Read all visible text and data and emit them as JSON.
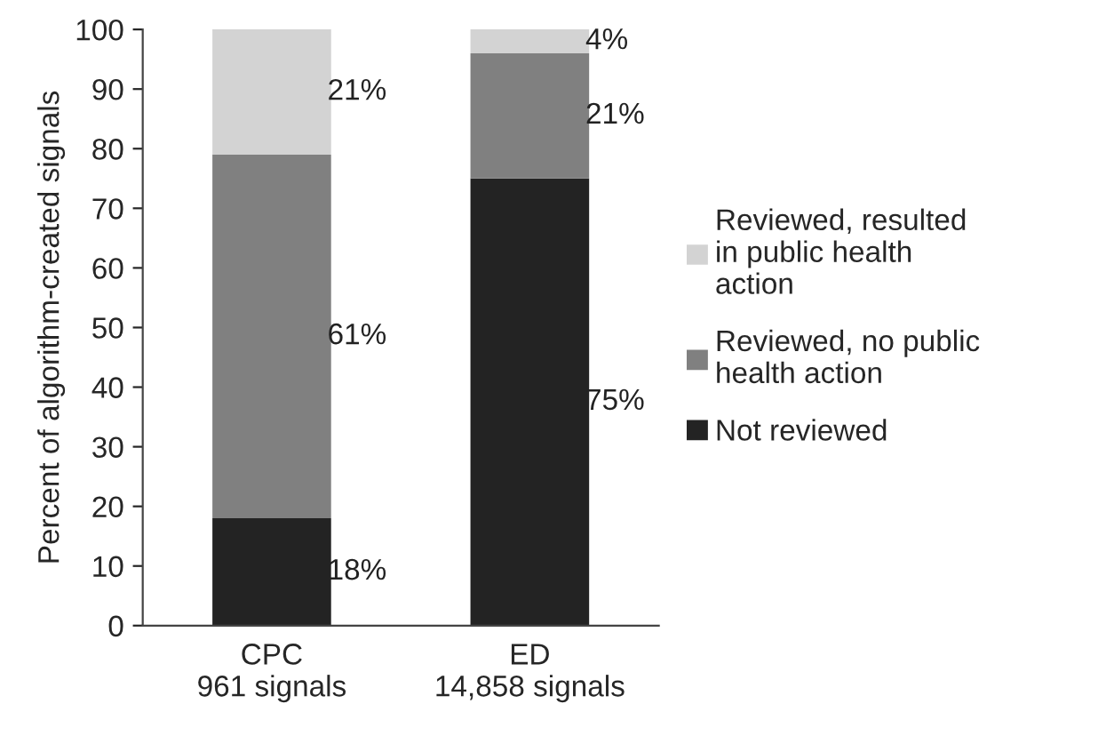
{
  "chart_data": {
    "type": "bar",
    "stacked": true,
    "ylabel": "Percent of algorithm-created signals",
    "categories": [
      "CPC\n961 signals",
      "ED\n14,858 signals"
    ],
    "series": [
      {
        "name": "Not reviewed",
        "color": "#232323",
        "values": [
          18,
          75
        ],
        "value_labels": [
          "18%",
          "75%"
        ]
      },
      {
        "name": "Reviewed, no public\nhealth action",
        "color": "#808080",
        "values": [
          61,
          21
        ],
        "value_labels": [
          "61%",
          "21%"
        ]
      },
      {
        "name": "Reviewed, resulted\nin public health\naction",
        "color": "#d3d3d3",
        "values": [
          21,
          4
        ],
        "value_labels": [
          "21%",
          "4%"
        ]
      }
    ],
    "ylim": [
      0,
      100
    ],
    "yticks": [
      0,
      10,
      20,
      30,
      40,
      50,
      60,
      70,
      80,
      90,
      100
    ],
    "grid": false,
    "legend": "right"
  }
}
